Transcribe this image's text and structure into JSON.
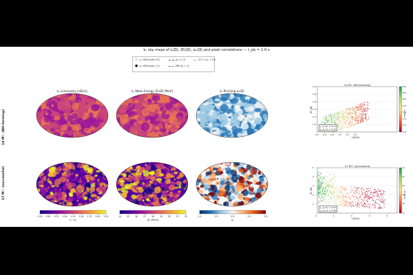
{
  "suptitle": "ν̄ₑ sky maps of L(Ω̂), ⟨E⟩(Ω̂), αₚ(Ω̂) and pixel correlations — t_pb = 1.0 s",
  "legend": {
    "items": [
      "νₑ LESA pole (+L̂)",
      "νₑ LESA pole (−L̂)",
      "αₚ < 1.0",
      "0.5 < αₚ < 2.0",
      "MB (αₚ = 1)"
    ]
  },
  "rows": [
    {
      "label": "14 M☉ (BH-forming)"
    },
    {
      "label": "17 M☉ (successful)"
    }
  ],
  "map_titles": [
    "ν̄ₑ Luminosity  L(Ω̂)/⟨L⟩",
    "ν̄ₑ Mean Energy  ⟨E⟩(Ω̂)  [MeV]",
    "ν̄ₑ Pinching  αₚ(Ω̂)"
  ],
  "colorbars": [
    {
      "label": "L / ⟨L⟩",
      "ticks": [
        "0.25",
        "0.50",
        "0.75",
        "1.00",
        "1.25",
        "1.50",
        "1.75",
        "2.00",
        "2.25"
      ],
      "colors": [
        "#0d0887",
        "#5b02a3",
        "#9a179b",
        "#cb4678",
        "#eb7852",
        "#fbb32f",
        "#f0f921"
      ]
    },
    {
      "label": "⟨E⟩  [MeV]",
      "ticks": [
        "14",
        "15",
        "16",
        "17",
        "18",
        "19",
        "20",
        "21",
        "22"
      ],
      "colors": [
        "#0d0887",
        "#5b02a3",
        "#9a179b",
        "#cb4678",
        "#eb7852",
        "#fbb32f",
        "#f0f921"
      ]
    },
    {
      "label": "αₚ",
      "ticks": [
        "1.0",
        "1.5",
        "2.0",
        "2.5",
        "3.0"
      ],
      "colors": [
        "#08306b",
        "#2171b5",
        "#9ecae1",
        "#f7f7f7",
        "#fdae6b",
        "#e6550d",
        "#7f0000"
      ]
    }
  ],
  "chart_data": [
    {
      "type": "scatter",
      "title": "14 M☉  (BH-forming)",
      "xlabel": "L(Ω̂)/⟨L⟩",
      "ylabel": "⟨E⟩ (Ω̂)",
      "clabel": "αₚ (MeV)",
      "xlim": [
        0.4,
        2.5
      ],
      "ylim": [
        0.8,
        2.0
      ],
      "xticks": [
        "0.4",
        "0.6",
        "0.8",
        "1.0",
        "1.2",
        "1.4"
      ],
      "yticks": [
        "1.0",
        "1.2",
        "1.4",
        "1.6",
        "1.8",
        "2.0"
      ],
      "cticks": [
        "17.0",
        "17.2",
        "17.4",
        "17.6",
        "17.8",
        "18.0",
        "18.2",
        "18.4"
      ],
      "stats": [
        "ρ_{L,E} = 0.14",
        "ρ_{L,α} = 0.39"
      ],
      "grid": true,
      "colormap": [
        "#a50026",
        "#f46d43",
        "#fee08b",
        "#a6d96a",
        "#1a9850"
      ]
    },
    {
      "type": "scatter",
      "title": "17 M☉  (successful)",
      "xlabel": "L(Ω̂)/⟨L⟩",
      "ylabel": "⟨E⟩ (Ω̂)",
      "clabel": "⟨E⟩ (MeV)",
      "xlim": [
        0,
        4.5
      ],
      "ylim": [
        0,
        5
      ],
      "xticks": [
        "0",
        "1",
        "2",
        "3",
        "4"
      ],
      "yticks": [
        "1",
        "2",
        "3",
        "4",
        "5"
      ],
      "cticks": [
        "14",
        "16",
        "18",
        "20",
        "22",
        "24"
      ],
      "stats": [
        "ρ_{L,E} = 0.53",
        "ρ_{L,α} = 0.28"
      ],
      "grid": true,
      "colormap": [
        "#a50026",
        "#f46d43",
        "#fee08b",
        "#a6d96a",
        "#1a9850"
      ]
    }
  ]
}
